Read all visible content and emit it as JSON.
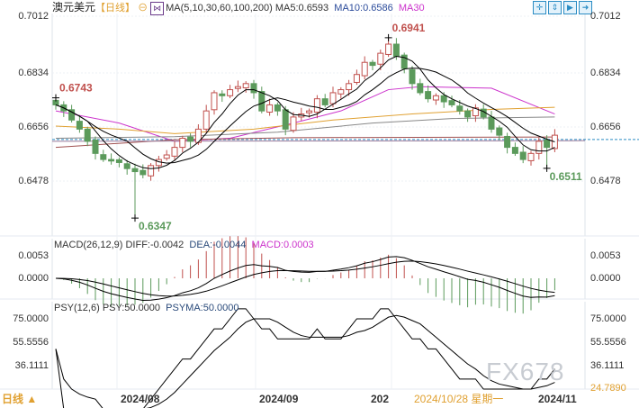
{
  "header": {
    "symbol": "澳元美元",
    "period": "【日线】",
    "ma_label": "MA(5,10,30,60,100,200)",
    "ma5": "MA5:0.6593",
    "ma10": "MA10:0.6586",
    "ma30": "MA30"
  },
  "toolbar_icons": [
    "crosshair-icon",
    "zoom-in-icon",
    "zoom-out-icon",
    "scroll-right-icon"
  ],
  "macd": {
    "label": "MACD(26,12,9)",
    "diff": "DIFF:-0.0042",
    "dea": "DEA:-0.0044",
    "macd": "MACD:0.0003",
    "ticks": [
      "0.0053",
      "0.0000"
    ]
  },
  "psy": {
    "label": "PSY(12,6)",
    "psy": "PSY:50.0000",
    "psyma": "PSYMA:50.0000",
    "ticks": [
      "75.0000",
      "55.5556",
      "36.1111"
    ],
    "right_ticks": [
      "75.0000",
      "55.5556",
      "36.1111",
      "24.7890"
    ]
  },
  "footer": {
    "period": "日线 ▲",
    "dates": [
      "2024/08",
      "2024/09",
      "202",
      "2024/11"
    ],
    "cursor_date": "2024/10/28 星期一"
  },
  "watermark": "FX678",
  "colors": {
    "up": "#c0504d",
    "down": "#5b9a5b",
    "ma5": "#000000",
    "ma10": "#000000",
    "ma30": "#cc33cc",
    "ma60": "#e0a030",
    "ma100": "#888888",
    "ma200": "#a05050",
    "dash": "#2a8cc4"
  },
  "chart_data": {
    "type": "candlestick",
    "title": "澳元美元 日线",
    "y_ticks": [
      "0.7012",
      "0.6834",
      "0.6656",
      "0.6478"
    ],
    "ylim": [
      0.6347,
      0.7012
    ],
    "current_price": 0.6606,
    "closes": [
      0.672,
      0.67,
      0.667,
      0.664,
      0.66,
      0.656,
      0.654,
      0.6535,
      0.653,
      0.651,
      0.65,
      0.649,
      0.652,
      0.654,
      0.6555,
      0.658,
      0.661,
      0.66,
      0.664,
      0.67,
      0.676,
      0.675,
      0.677,
      0.678,
      0.679,
      0.676,
      0.67,
      0.672,
      0.67,
      0.664,
      0.668,
      0.669,
      0.67,
      0.674,
      0.672,
      0.676,
      0.677,
      0.679,
      0.682,
      0.686,
      0.685,
      0.689,
      0.692,
      0.688,
      0.684,
      0.679,
      0.676,
      0.674,
      0.675,
      0.673,
      0.672,
      0.67,
      0.668,
      0.671,
      0.668,
      0.664,
      0.662,
      0.658,
      0.656,
      0.654,
      0.656,
      0.66,
      0.658,
      0.662
    ],
    "first_open": 0.6735,
    "markers": [
      {
        "index": 0,
        "value": "0.6743",
        "kind": "start"
      },
      {
        "index": 10,
        "value": "0.6347",
        "kind": "low"
      },
      {
        "index": 42,
        "value": "0.6941",
        "kind": "high"
      },
      {
        "index": 62,
        "value": "0.6511",
        "kind": "low"
      }
    ],
    "ma_lines": {
      "ma30": [
        [
          0,
          0.67
        ],
        [
          8,
          0.666
        ],
        [
          15,
          0.66
        ],
        [
          22,
          0.661
        ],
        [
          30,
          0.666
        ],
        [
          36,
          0.67
        ],
        [
          42,
          0.677
        ],
        [
          46,
          0.678
        ],
        [
          55,
          0.6775
        ],
        [
          63,
          0.669
        ]
      ],
      "ma60": [
        [
          0,
          0.665
        ],
        [
          8,
          0.664
        ],
        [
          15,
          0.6625
        ],
        [
          25,
          0.664
        ],
        [
          35,
          0.667
        ],
        [
          45,
          0.669
        ],
        [
          55,
          0.6705
        ],
        [
          63,
          0.6712
        ]
      ],
      "ma100": [
        [
          0,
          0.661
        ],
        [
          15,
          0.6615
        ],
        [
          28,
          0.663
        ],
        [
          40,
          0.666
        ],
        [
          50,
          0.6675
        ],
        [
          63,
          0.668
        ]
      ],
      "ma200": [
        [
          0,
          0.658
        ],
        [
          15,
          0.6605
        ],
        [
          30,
          0.6612
        ],
        [
          63,
          0.6614
        ]
      ]
    },
    "x_ticks": [
      "2024/08",
      "2024/09",
      "2024/10",
      "2024/11"
    ]
  }
}
